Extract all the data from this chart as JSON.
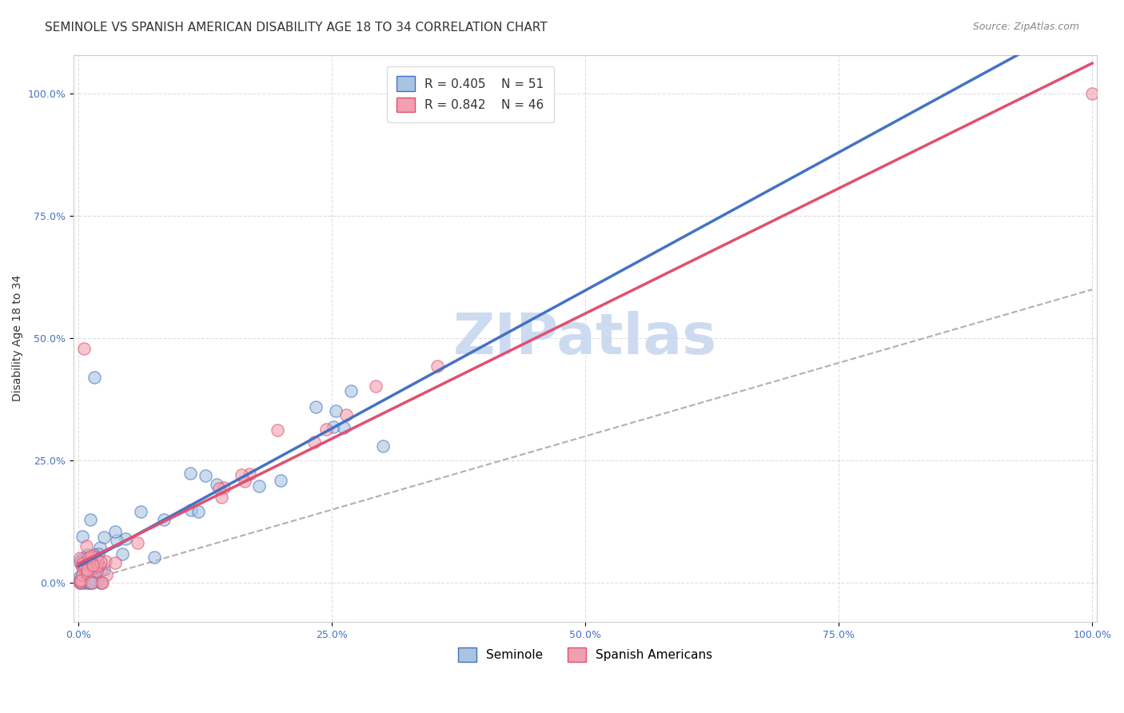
{
  "title": "SEMINOLE VS SPANISH AMERICAN DISABILITY AGE 18 TO 34 CORRELATION CHART",
  "source": "Source: ZipAtlas.com",
  "ylabel": "Disability Age 18 to 34",
  "xlabel": "",
  "xlim": [
    -0.005,
    1.005
  ],
  "ylim": [
    -0.08,
    1.08
  ],
  "xticks": [
    0.0,
    0.25,
    0.5,
    0.75,
    1.0
  ],
  "xticklabels": [
    "0.0%",
    "25.0%",
    "50.0%",
    "75.0%",
    "100.0%"
  ],
  "yticks": [
    0.0,
    0.25,
    0.5,
    0.75,
    1.0
  ],
  "yticklabels": [
    "0.0%",
    "25.0%",
    "50.0%",
    "75.0%",
    "100.0%"
  ],
  "seminole_color": "#a8c4e0",
  "spanish_color": "#f0a0b0",
  "seminole_line_color": "#4472c4",
  "spanish_line_color": "#e05070",
  "ref_line_color": "#b0b0b0",
  "legend_r1": "R = 0.405",
  "legend_n1": "N = 51",
  "legend_r2": "R = 0.842",
  "legend_n2": "N = 46",
  "watermark": "ZIPatlas",
  "watermark_color": "#c8d8f0",
  "background_color": "#ffffff",
  "grid_color": "#d0d0d0",
  "title_fontsize": 11,
  "axis_label_fontsize": 10,
  "tick_fontsize": 9,
  "legend_fontsize": 11,
  "source_fontsize": 9
}
